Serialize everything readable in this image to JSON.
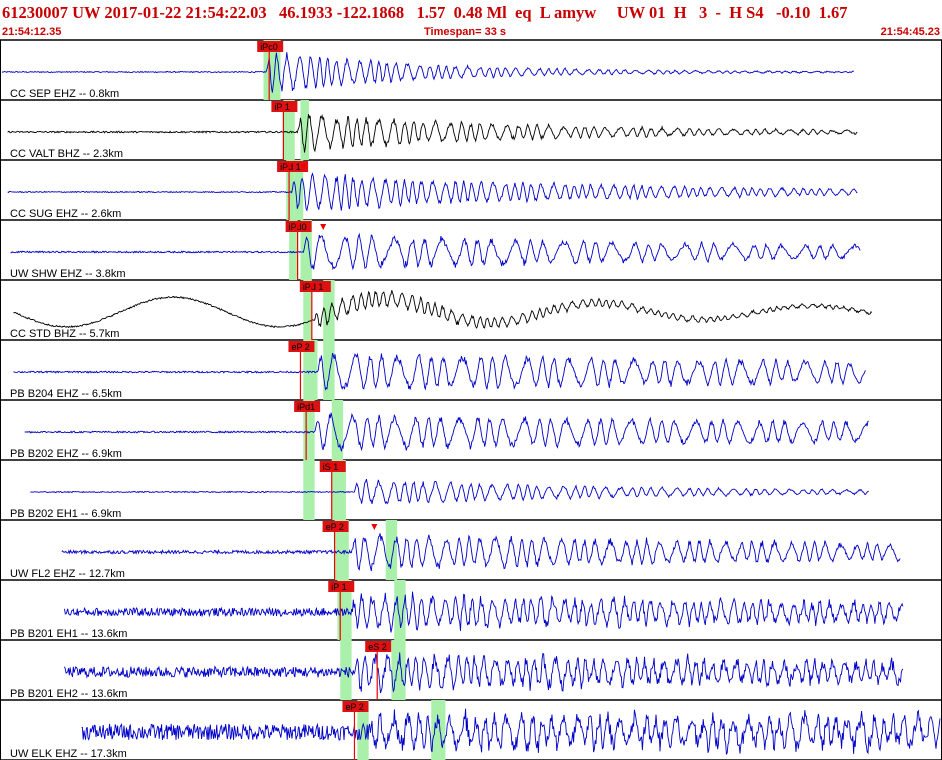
{
  "header": {
    "event_line": "61230007 UW 2017-01-22 21:54:22.03   46.1933 -122.1868   1.57  0.48 Ml  eq  L amyw     UW 01  H   3  -  H S4   -0.10  1.67",
    "start_time": "21:54:12.35",
    "timespan": "Timespan=  33 s",
    "end_time": "21:54:45.23"
  },
  "colors": {
    "header_red": "#c80000",
    "trace_blue": "#0000c8",
    "trace_black": "#000000",
    "pick_red": "#ee0000",
    "window_green": "#aaf0aa",
    "label_red_bg": "#dd1111"
  },
  "chart_data": {
    "type": "line",
    "title": "",
    "xlabel": "",
    "ylabel": "",
    "xlim": [
      0,
      33
    ],
    "units": "s",
    "traces": [
      {
        "label": "CC SEP EHZ -- 0.8km",
        "color": "blue",
        "start": 0.0,
        "onset": 9.3,
        "end": 30.0,
        "amp": 0.9,
        "decay": 0.18,
        "period": 0.35,
        "noise": 0.02,
        "picks": [
          {
            "label": "iPc0",
            "t": 9.4,
            "marker": false
          }
        ],
        "windows": [
          [
            9.2,
            9.8
          ]
        ]
      },
      {
        "label": "CC VALT BHZ -- 2.3km",
        "color": "black",
        "start": 0.2,
        "onset": 10.4,
        "end": 30.1,
        "amp": 0.8,
        "decay": 0.12,
        "period": 0.4,
        "noise": 0.03,
        "picks": [
          {
            "label": "iP 1",
            "t": 9.9,
            "marker": false
          }
        ],
        "windows": [
          [
            9.9,
            10.3
          ],
          [
            10.5,
            10.8
          ]
        ]
      },
      {
        "label": "CC SUG EHZ -- 2.6km",
        "color": "blue",
        "start": 0.2,
        "onset": 10.2,
        "end": 30.1,
        "amp": 0.8,
        "decay": 0.09,
        "period": 0.35,
        "noise": 0.02,
        "picks": [
          {
            "label": "iPd 1",
            "t": 10.1,
            "marker": true
          },
          {
            "label": "",
            "t": 10.6,
            "marker": true
          }
        ],
        "windows": [
          [
            10.0,
            10.3
          ],
          [
            10.3,
            10.6
          ]
        ]
      },
      {
        "label": "UW SHW EHZ -- 3.8km",
        "color": "blue",
        "start": 0.3,
        "onset": 10.6,
        "end": 30.2,
        "amp": 0.75,
        "decay": 0.05,
        "period": 0.6,
        "noise": 0.03,
        "picks": [
          {
            "label": "iPd0",
            "t": 10.4,
            "marker": true
          },
          {
            "label": "",
            "t": 11.3,
            "marker": true
          }
        ],
        "windows": [
          [
            10.1,
            10.4
          ],
          [
            10.5,
            10.9
          ]
        ]
      },
      {
        "label": "CC STD BHZ -- 5.7km",
        "color": "black",
        "start": 0.4,
        "onset": 11.0,
        "end": 30.6,
        "amp": 0.45,
        "decay": 0.1,
        "period": 0.3,
        "noise": 0.03,
        "picks": [
          {
            "label": "iPd 1",
            "t": 10.9,
            "marker": true
          }
        ],
        "windows": [
          [
            10.6,
            10.9
          ],
          [
            11.3,
            11.7
          ]
        ]
      },
      {
        "label": "PB B204 EHZ -- 6.5km",
        "color": "blue",
        "start": 0.4,
        "onset": 11.1,
        "end": 30.4,
        "amp": 0.8,
        "decay": 0.03,
        "period": 0.55,
        "noise": 0.03,
        "picks": [
          {
            "label": "eP 2",
            "t": 10.5,
            "marker": false
          }
        ],
        "windows": [
          [
            10.6,
            11.1
          ],
          [
            11.3,
            11.7
          ]
        ]
      },
      {
        "label": "PB B202 EHZ -- 6.9km",
        "color": "blue",
        "start": 0.8,
        "onset": 11.0,
        "end": 30.5,
        "amp": 0.75,
        "decay": 0.03,
        "period": 0.55,
        "noise": 0.03,
        "picks": [
          {
            "label": "iPd1",
            "t": 10.7,
            "marker": false
          }
        ],
        "windows": [
          [
            10.6,
            11.0
          ],
          [
            11.6,
            12.0
          ]
        ]
      },
      {
        "label": "PB B202 EH1 -- 6.9km",
        "color": "blue",
        "start": 1.0,
        "onset": 12.4,
        "end": 30.5,
        "amp": 0.55,
        "decay": 0.1,
        "period": 0.4,
        "noise": 0.02,
        "picks": [
          {
            "label": "iS 1",
            "t": 11.6,
            "marker": true
          }
        ],
        "windows": [
          [
            10.6,
            11.0
          ],
          [
            11.6,
            12.1
          ]
        ]
      },
      {
        "label": "UW FL2 EHZ -- 12.7km",
        "color": "blue",
        "start": 2.1,
        "onset": 12.3,
        "end": 31.6,
        "amp": 0.75,
        "decay": 0.04,
        "period": 0.45,
        "noise": 0.06,
        "picks": [
          {
            "label": "eP 2",
            "t": 11.7,
            "marker": false
          },
          {
            "label": "",
            "t": 13.1,
            "marker": true
          }
        ],
        "windows": [
          [
            11.7,
            12.2
          ],
          [
            13.5,
            13.9
          ]
        ]
      },
      {
        "label": "PB B201 EH1 -- 13.6km",
        "color": "blue",
        "start": 2.2,
        "onset": 12.3,
        "end": 31.7,
        "amp": 0.7,
        "decay": 0.03,
        "period": 0.35,
        "noise": 0.15,
        "picks": [
          {
            "label": "iP 1",
            "t": 11.9,
            "marker": false
          }
        ],
        "windows": [
          [
            11.8,
            12.3
          ],
          [
            13.8,
            14.2
          ]
        ]
      },
      {
        "label": "PB B201 EH2 -- 13.6km",
        "color": "blue",
        "start": 2.2,
        "onset": 12.4,
        "end": 31.7,
        "amp": 0.7,
        "decay": 0.03,
        "period": 0.35,
        "noise": 0.2,
        "picks": [
          {
            "label": "eS 2",
            "t": 13.2,
            "marker": false
          }
        ],
        "windows": [
          [
            11.9,
            12.3
          ],
          [
            13.7,
            14.2
          ]
        ]
      },
      {
        "label": "UW ELK EHZ -- 17.3km",
        "color": "blue",
        "start": 2.8,
        "onset": 12.9,
        "end": 33.0,
        "amp": 0.7,
        "decay": 0.01,
        "period": 0.4,
        "noise": 0.3,
        "picks": [
          {
            "label": "eP 2",
            "t": 12.4,
            "marker": false
          }
        ],
        "windows": [
          [
            12.5,
            12.9
          ],
          [
            15.1,
            15.6
          ]
        ]
      }
    ]
  }
}
